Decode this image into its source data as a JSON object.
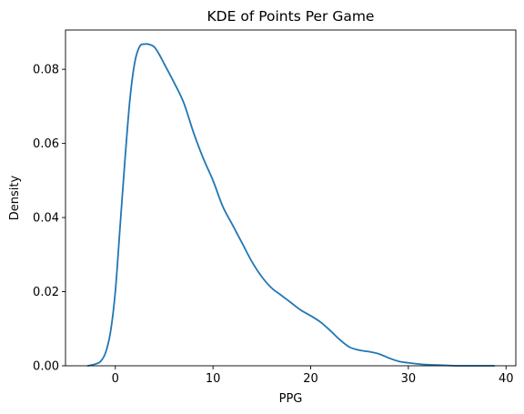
{
  "chart_data": {
    "type": "line",
    "title": "KDE of Points Per Game",
    "xlabel": "PPG",
    "ylabel": "Density",
    "xlim": [
      -5.1,
      41.0
    ],
    "ylim": [
      0,
      0.0906
    ],
    "x_ticks": [
      0,
      10,
      20,
      30,
      40
    ],
    "y_ticks": [
      0.0,
      0.02,
      0.04,
      0.06,
      0.08
    ],
    "x_tick_labels": [
      "0",
      "10",
      "20",
      "30",
      "40"
    ],
    "y_tick_labels": [
      "0.00",
      "0.02",
      "0.04",
      "0.06",
      "0.08"
    ],
    "grid": false,
    "series": [
      {
        "color": "#1f77b4",
        "x": [
          -2.8,
          -2.0,
          -1.5,
          -1.0,
          -0.5,
          0.0,
          0.5,
          1.0,
          1.5,
          2.0,
          2.5,
          3.0,
          3.5,
          4.0,
          4.5,
          5.0,
          6.0,
          7.0,
          8.0,
          9.0,
          10.0,
          11.0,
          12.0,
          13.0,
          14.0,
          15.0,
          16.0,
          17.0,
          18.0,
          19.0,
          20.0,
          21.0,
          22.0,
          23.0,
          24.0,
          25.0,
          26.0,
          27.0,
          28.0,
          29.0,
          30.0,
          31.0,
          32.0,
          33.0,
          34.0,
          35.0,
          36.0,
          37.0,
          38.0,
          38.8
        ],
        "y": [
          0.0,
          0.0005,
          0.0012,
          0.0035,
          0.009,
          0.02,
          0.038,
          0.056,
          0.072,
          0.082,
          0.0862,
          0.0868,
          0.0867,
          0.086,
          0.084,
          0.0815,
          0.0765,
          0.071,
          0.063,
          0.056,
          0.05,
          0.043,
          0.038,
          0.033,
          0.028,
          0.024,
          0.021,
          0.019,
          0.017,
          0.015,
          0.0135,
          0.0118,
          0.0095,
          0.007,
          0.005,
          0.0042,
          0.0038,
          0.0032,
          0.0021,
          0.0012,
          0.0008,
          0.0005,
          0.0003,
          0.0002,
          0.0001,
          0.0,
          0.0,
          0.0,
          0.0,
          0.0
        ]
      }
    ]
  }
}
